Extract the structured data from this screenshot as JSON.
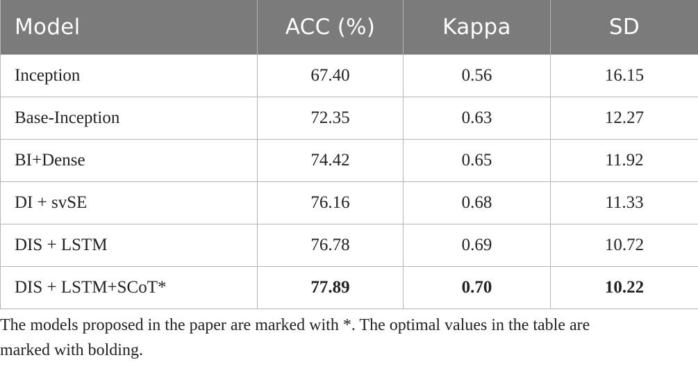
{
  "table": {
    "headers": [
      "Model",
      "ACC (%)",
      "Kappa",
      "SD"
    ],
    "rows": [
      {
        "model": "Inception",
        "acc": "67.40",
        "kappa": "0.56",
        "sd": "16.15",
        "bold": false
      },
      {
        "model": "Base-Inception",
        "acc": "72.35",
        "kappa": "0.63",
        "sd": "12.27",
        "bold": false
      },
      {
        "model": "BI+Dense",
        "acc": "74.42",
        "kappa": "0.65",
        "sd": "11.92",
        "bold": false
      },
      {
        "model": "DI + svSE",
        "acc": "76.16",
        "kappa": "0.68",
        "sd": "11.33",
        "bold": false
      },
      {
        "model": "DIS + LSTM",
        "acc": "76.78",
        "kappa": "0.69",
        "sd": "10.72",
        "bold": false
      },
      {
        "model": "DIS + LSTM+SCoT*",
        "acc": "77.89",
        "kappa": "0.70",
        "sd": "10.22",
        "bold": true
      }
    ]
  },
  "footnote": {
    "line1": "The models proposed in the paper are marked with *. The optimal values in the table are",
    "line2": "marked with bolding."
  },
  "colors": {
    "header_bg": "#7b7b7b",
    "header_text": "#ffffff",
    "border": "#b5b5b5",
    "body_text": "#222222"
  }
}
